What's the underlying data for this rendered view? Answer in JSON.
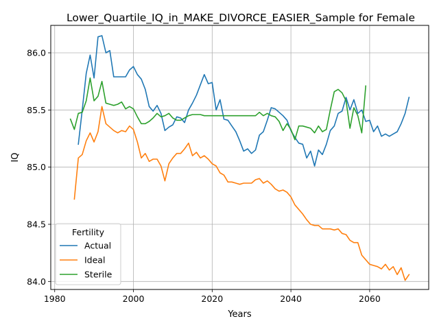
{
  "chart_data": {
    "type": "line",
    "title": "Lower_Quartile_IQ_in_MAKE_DIVORCE_EASIER_Sample for Female",
    "xlabel": "Years",
    "ylabel": "IQ",
    "xlim": [
      1979,
      2075
    ],
    "ylim": [
      83.93,
      86.24
    ],
    "xticks": [
      1980,
      2000,
      2020,
      2040,
      2060
    ],
    "yticks": [
      84.0,
      84.5,
      85.0,
      85.5,
      86.0
    ],
    "xtick_labels": [
      "1980",
      "2000",
      "2020",
      "2040",
      "2060"
    ],
    "ytick_labels": [
      "84.0",
      "84.5",
      "85.0",
      "85.5",
      "86.0"
    ],
    "grid": true,
    "legend": {
      "title": "Fertility",
      "placement": "lower-left"
    },
    "series": [
      {
        "name": "Actual",
        "color": "#1f77b4",
        "x": [
          1986,
          1987,
          1988,
          1989,
          1990,
          1991,
          1992,
          1993,
          1994,
          1995,
          1996,
          1997,
          1998,
          1999,
          2000,
          2001,
          2002,
          2003,
          2004,
          2005,
          2006,
          2007,
          2008,
          2009,
          2010,
          2011,
          2012,
          2013,
          2014,
          2015,
          2016,
          2017,
          2018,
          2019,
          2020,
          2021,
          2022,
          2023,
          2024,
          2025,
          2026,
          2027,
          2028,
          2029,
          2030,
          2031,
          2032,
          2033,
          2034,
          2035,
          2036,
          2037,
          2038,
          2039,
          2040,
          2041,
          2042,
          2043,
          2044,
          2045,
          2046,
          2047,
          2048,
          2049,
          2050,
          2051,
          2052,
          2053,
          2054,
          2055,
          2056,
          2057,
          2058,
          2059,
          2060,
          2061,
          2062,
          2063,
          2064,
          2065,
          2066,
          2067,
          2068,
          2069,
          2070
        ],
        "y": [
          85.2,
          85.5,
          85.82,
          85.98,
          85.78,
          86.14,
          86.15,
          86.0,
          86.02,
          85.79,
          85.79,
          85.79,
          85.79,
          85.85,
          85.88,
          85.81,
          85.77,
          85.68,
          85.53,
          85.49,
          85.54,
          85.47,
          85.32,
          85.35,
          85.37,
          85.44,
          85.43,
          85.39,
          85.5,
          85.56,
          85.63,
          85.72,
          85.81,
          85.73,
          85.74,
          85.5,
          85.59,
          85.42,
          85.41,
          85.36,
          85.31,
          85.23,
          85.14,
          85.16,
          85.12,
          85.15,
          85.28,
          85.31,
          85.41,
          85.52,
          85.51,
          85.48,
          85.45,
          85.41,
          85.32,
          85.26,
          85.21,
          85.2,
          85.08,
          85.14,
          85.01,
          85.15,
          85.11,
          85.2,
          85.32,
          85.36,
          85.47,
          85.49,
          85.61,
          85.5,
          85.59,
          85.47,
          85.5,
          85.4,
          85.41,
          85.31,
          85.36,
          85.27,
          85.29,
          85.27,
          85.29,
          85.31,
          85.38,
          85.47,
          85.61
        ]
      },
      {
        "name": "Ideal",
        "color": "#ff7f0e",
        "x": [
          1985,
          1986,
          1987,
          1988,
          1989,
          1990,
          1991,
          1992,
          1993,
          1994,
          1995,
          1996,
          1997,
          1998,
          1999,
          2000,
          2001,
          2002,
          2003,
          2004,
          2005,
          2006,
          2007,
          2008,
          2009,
          2010,
          2011,
          2012,
          2013,
          2014,
          2015,
          2016,
          2017,
          2018,
          2019,
          2020,
          2021,
          2022,
          2023,
          2024,
          2025,
          2026,
          2027,
          2028,
          2029,
          2030,
          2031,
          2032,
          2033,
          2034,
          2035,
          2036,
          2037,
          2038,
          2039,
          2040,
          2041,
          2042,
          2043,
          2044,
          2045,
          2046,
          2047,
          2048,
          2049,
          2050,
          2051,
          2052,
          2053,
          2054,
          2055,
          2056,
          2057,
          2058,
          2059,
          2060,
          2061,
          2062,
          2063,
          2064,
          2065,
          2066,
          2067,
          2068,
          2069,
          2070
        ],
        "y": [
          84.72,
          85.08,
          85.11,
          85.23,
          85.3,
          85.22,
          85.31,
          85.53,
          85.38,
          85.35,
          85.32,
          85.3,
          85.32,
          85.31,
          85.36,
          85.33,
          85.22,
          85.08,
          85.12,
          85.05,
          85.07,
          85.07,
          85.01,
          84.88,
          85.03,
          85.08,
          85.12,
          85.12,
          85.16,
          85.21,
          85.1,
          85.13,
          85.08,
          85.1,
          85.07,
          85.03,
          85.01,
          84.95,
          84.93,
          84.87,
          84.87,
          84.86,
          84.85,
          84.86,
          84.86,
          84.86,
          84.89,
          84.9,
          84.86,
          84.88,
          84.85,
          84.81,
          84.79,
          84.8,
          84.78,
          84.74,
          84.67,
          84.63,
          84.59,
          84.54,
          84.5,
          84.49,
          84.49,
          84.46,
          84.46,
          84.46,
          84.45,
          84.46,
          84.42,
          84.41,
          84.36,
          84.34,
          84.34,
          84.23,
          84.19,
          84.15,
          84.14,
          84.13,
          84.11,
          84.15,
          84.1,
          84.13,
          84.06,
          84.12,
          84.01,
          84.06
        ]
      },
      {
        "name": "Sterile",
        "color": "#2ca02c",
        "x": [
          1984,
          1985,
          1986,
          1987,
          1988,
          1989,
          1990,
          1991,
          1992,
          1993,
          1994,
          1995,
          1996,
          1997,
          1998,
          1999,
          2000,
          2001,
          2002,
          2003,
          2004,
          2005,
          2006,
          2007,
          2008,
          2009,
          2010,
          2011,
          2012,
          2013,
          2014,
          2015,
          2016,
          2017,
          2018,
          2019,
          2020,
          2021,
          2022,
          2023,
          2024,
          2025,
          2026,
          2027,
          2028,
          2029,
          2030,
          2031,
          2032,
          2033,
          2034,
          2035,
          2036,
          2037,
          2038,
          2039,
          2040,
          2041,
          2042,
          2043,
          2044,
          2045,
          2046,
          2047,
          2048,
          2049,
          2050,
          2051,
          2052,
          2053,
          2054,
          2055,
          2056,
          2057,
          2058,
          2059
        ],
        "y": [
          85.42,
          85.33,
          85.47,
          85.48,
          85.58,
          85.78,
          85.58,
          85.62,
          85.75,
          85.56,
          85.55,
          85.54,
          85.55,
          85.57,
          85.51,
          85.53,
          85.51,
          85.44,
          85.38,
          85.38,
          85.4,
          85.43,
          85.47,
          85.44,
          85.45,
          85.47,
          85.43,
          85.41,
          85.41,
          85.43,
          85.45,
          85.46,
          85.46,
          85.46,
          85.45,
          85.45,
          85.45,
          85.45,
          85.45,
          85.45,
          85.45,
          85.45,
          85.45,
          85.45,
          85.45,
          85.45,
          85.45,
          85.45,
          85.48,
          85.45,
          85.47,
          85.45,
          85.44,
          85.4,
          85.32,
          85.38,
          85.33,
          85.24,
          85.36,
          85.36,
          85.35,
          85.34,
          85.3,
          85.36,
          85.31,
          85.33,
          85.5,
          85.66,
          85.68,
          85.65,
          85.58,
          85.34,
          85.52,
          85.45,
          85.3,
          85.71
        ]
      }
    ]
  }
}
